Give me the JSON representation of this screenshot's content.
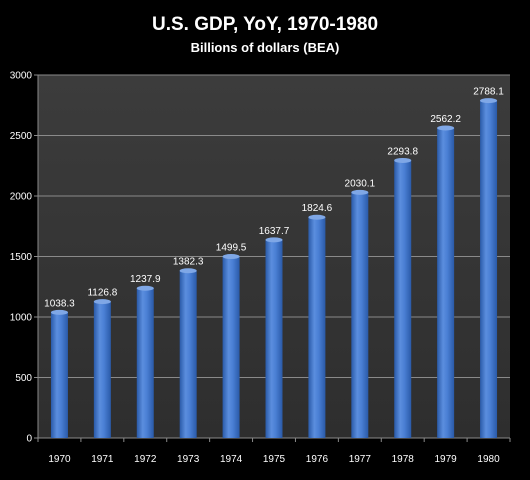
{
  "chart_data": {
    "type": "bar",
    "title": "U.S. GDP, YoY, 1970-1980",
    "subtitle": "Billions of dollars (BEA)",
    "xlabel": "",
    "ylabel": "",
    "categories": [
      "1970",
      "1971",
      "1972",
      "1973",
      "1974",
      "1975",
      "1976",
      "1977",
      "1978",
      "1979",
      "1980"
    ],
    "values": [
      1038.3,
      1126.8,
      1237.9,
      1382.3,
      1499.5,
      1637.7,
      1824.6,
      2030.1,
      2293.8,
      2562.2,
      2788.1
    ],
    "data_labels": [
      "1038.3",
      "1126.8",
      "1237.9",
      "1382.3",
      "1499.5",
      "1637.7",
      "1824.6",
      "2030.1",
      "2293.8",
      "2562.2",
      "2788.1"
    ],
    "ylim": [
      0,
      3000
    ],
    "y_ticks": [
      "0",
      "500",
      "1000",
      "1500",
      "2000",
      "2500",
      "3000"
    ],
    "grid": true,
    "legend": "none",
    "colors": {
      "background": "#000000",
      "plot_area": "#3a3a3a",
      "gridline": "#8a8a8a",
      "bar": "#3f74c8",
      "bar_highlight": "#7fa7e6",
      "bar_shadow": "#1f3f78",
      "text": "#ffffff"
    }
  }
}
